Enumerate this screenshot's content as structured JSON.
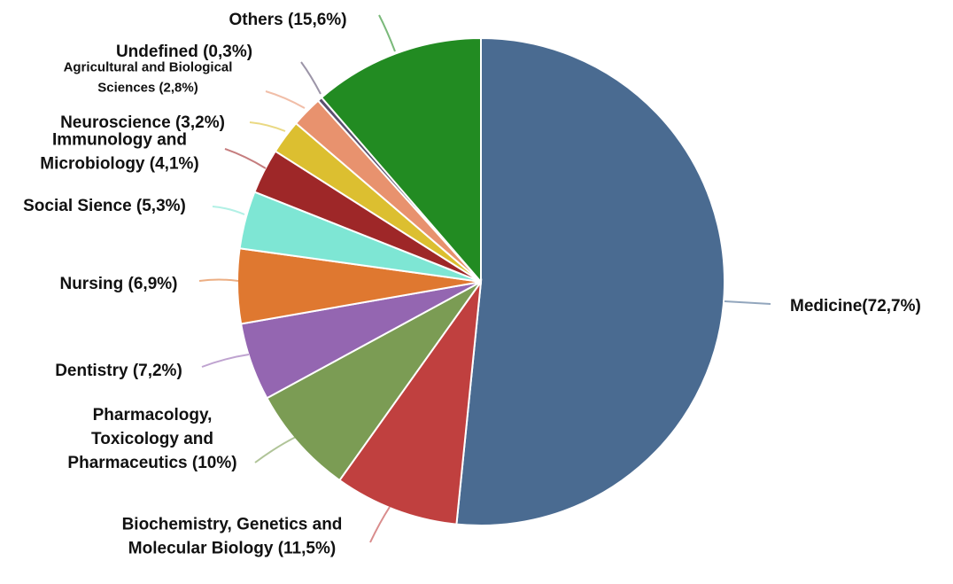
{
  "chart_data": {
    "type": "pie",
    "title": "",
    "start_angle_deg": 0,
    "direction": "clockwise",
    "slices": [
      {
        "name": "Medicine(72,7%)",
        "lines": [
          "Medicine(72,7%)"
        ],
        "percent": 72.7,
        "share": 50.0,
        "color": "#4a6b91",
        "side": "right"
      },
      {
        "name": "Biochemistry, Genetics and Molecular Biology (11,5%)",
        "lines": [
          "Biochemistry, Genetics and",
          "Molecular Biology (11,5%)"
        ],
        "percent": 11.5,
        "share": 8.0,
        "color": "#c0403f",
        "side": "left"
      },
      {
        "name": "Pharmacology, Toxicology and Pharmaceutics (10%)",
        "lines": [
          "Pharmacology,",
          "Toxicology and",
          "Pharmaceutics (10%)"
        ],
        "percent": 10,
        "share": 7.0,
        "color": "#7b9c54",
        "side": "left"
      },
      {
        "name": "Dentistry (7,2%)",
        "lines": [
          "Dentistry (7,2%)"
        ],
        "percent": 7.2,
        "share": 5.0,
        "color": "#9466b1",
        "side": "left"
      },
      {
        "name": "Nursing (6,9%)",
        "lines": [
          "Nursing (6,9%)"
        ],
        "percent": 6.9,
        "share": 4.8,
        "color": "#df7830",
        "side": "left"
      },
      {
        "name": "Social Sience (5,3%)",
        "lines": [
          "Social Sience (5,3%)"
        ],
        "percent": 5.3,
        "share": 3.7,
        "color": "#7ee6d4",
        "side": "left"
      },
      {
        "name": "Immunology and Microbiology (4,1%)",
        "lines": [
          "Immunology and",
          "Microbiology (4,1%)"
        ],
        "percent": 4.1,
        "share": 2.9,
        "color": "#9e2728",
        "side": "left"
      },
      {
        "name": "Neuroscience (3,2%)",
        "lines": [
          "Neuroscience (3,2%)"
        ],
        "percent": 3.2,
        "share": 2.2,
        "color": "#dcbf30",
        "side": "left"
      },
      {
        "name": "Agricultural and Biological Sciences (2,8%)",
        "lines": [
          "Agricultural and Biological",
          "Sciences (2,8%)"
        ],
        "percent": 2.8,
        "share": 2.0,
        "color": "#e8926e",
        "side": "left",
        "small": true
      },
      {
        "name": "Undefined (0,3%)",
        "lines": [
          "Undefined (0,3%)"
        ],
        "percent": 0.3,
        "share": 0.3,
        "color": "#5a4f6e",
        "side": "left"
      },
      {
        "name": "Others (15,6%)",
        "lines": [
          "Others (15,6%)"
        ],
        "percent": 15.6,
        "share": 11.0,
        "color": "#228b22",
        "side": "left"
      }
    ]
  }
}
